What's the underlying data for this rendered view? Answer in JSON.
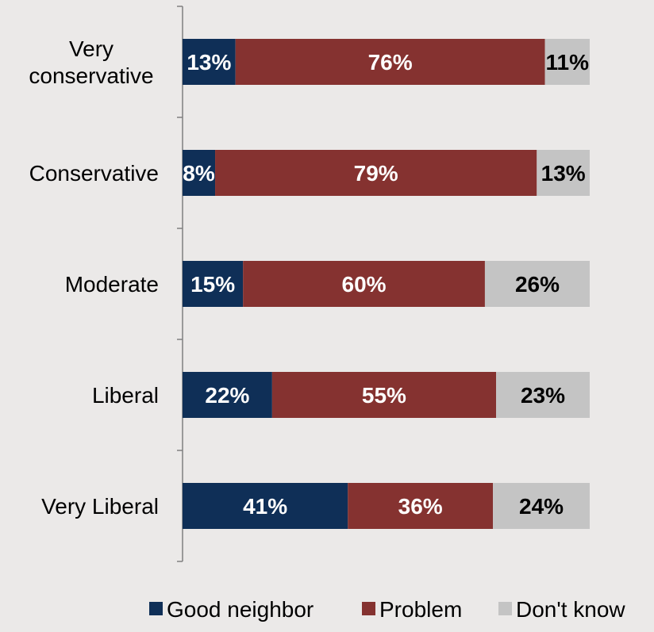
{
  "chart_data": {
    "type": "bar",
    "orientation": "horizontal",
    "stacked": "100%",
    "categories": [
      "Very conservative",
      "Conservative",
      "Moderate",
      "Liberal",
      "Very Liberal"
    ],
    "category_lines": [
      [
        "Very",
        "conservative"
      ],
      [
        "Conservative"
      ],
      [
        "Moderate"
      ],
      [
        "Liberal"
      ],
      [
        "Very Liberal"
      ]
    ],
    "series": [
      {
        "name": "Good neighbor",
        "color": "#0f2f57",
        "text_color": "#ffffff",
        "values": [
          13,
          8,
          15,
          22,
          41
        ],
        "labels": [
          "13%",
          "8%",
          "15%",
          "22%",
          "41%"
        ]
      },
      {
        "name": "Problem",
        "color": "#853230",
        "text_color": "#ffffff",
        "values": [
          76,
          79,
          60,
          55,
          36
        ],
        "labels": [
          "76%",
          "79%",
          "60%",
          "55%",
          "36%"
        ]
      },
      {
        "name": "Don't know",
        "color": "#c4c4c4",
        "text_color": "#000000",
        "values": [
          11,
          13,
          26,
          23,
          24
        ],
        "labels": [
          "11%",
          "13%",
          "26%",
          "23%",
          "24%"
        ]
      }
    ],
    "title": "",
    "xlabel": "",
    "ylabel": "",
    "legend": {
      "position": "bottom-right"
    },
    "grid": false
  }
}
